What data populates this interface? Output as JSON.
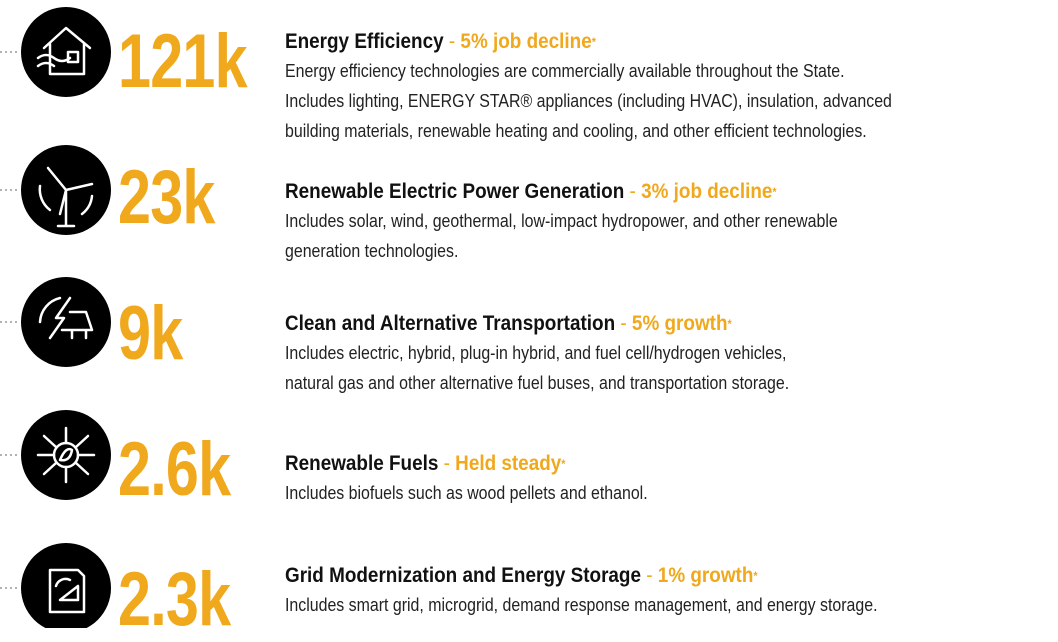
{
  "items": [
    {
      "number": "121k",
      "title": "Energy Efficiency",
      "separator": "-",
      "status": "5% job decline",
      "mark": "*",
      "description_lines": [
        "Energy efficiency technologies are commercially available throughout the State.",
        "Includes lighting, ENERGY STAR® appliances (including HVAC), insulation, advanced",
        "building materials, renewable heating and cooling, and other efficient technologies."
      ]
    },
    {
      "number": "23k",
      "title": "Renewable Electric Power Generation",
      "separator": "-",
      "status": "3% job decline",
      "mark": "*",
      "description_lines": [
        "Includes solar, wind, geothermal, low-impact hydropower, and other renewable",
        "generation technologies."
      ]
    },
    {
      "number": "9k",
      "title": "Clean and Alternative Transportation",
      "separator": "-",
      "status": "5% growth",
      "mark": "*",
      "description_lines": [
        "Includes electric, hybrid, plug-in hybrid, and fuel cell/hydrogen vehicles,",
        "natural gas and other alternative fuel buses, and transportation storage."
      ]
    },
    {
      "number": "2.6k",
      "title": "Renewable Fuels",
      "separator": "-",
      "status": "Held steady",
      "mark": "*",
      "description_lines": [
        "Includes biofuels such as wood pellets and ethanol."
      ]
    },
    {
      "number": "2.3k",
      "title": "Grid Modernization and Energy Storage",
      "separator": "-",
      "status": "1% growth",
      "mark": "*",
      "description_lines": [
        "Includes smart grid, microgrid, demand response management, and energy storage."
      ]
    }
  ]
}
